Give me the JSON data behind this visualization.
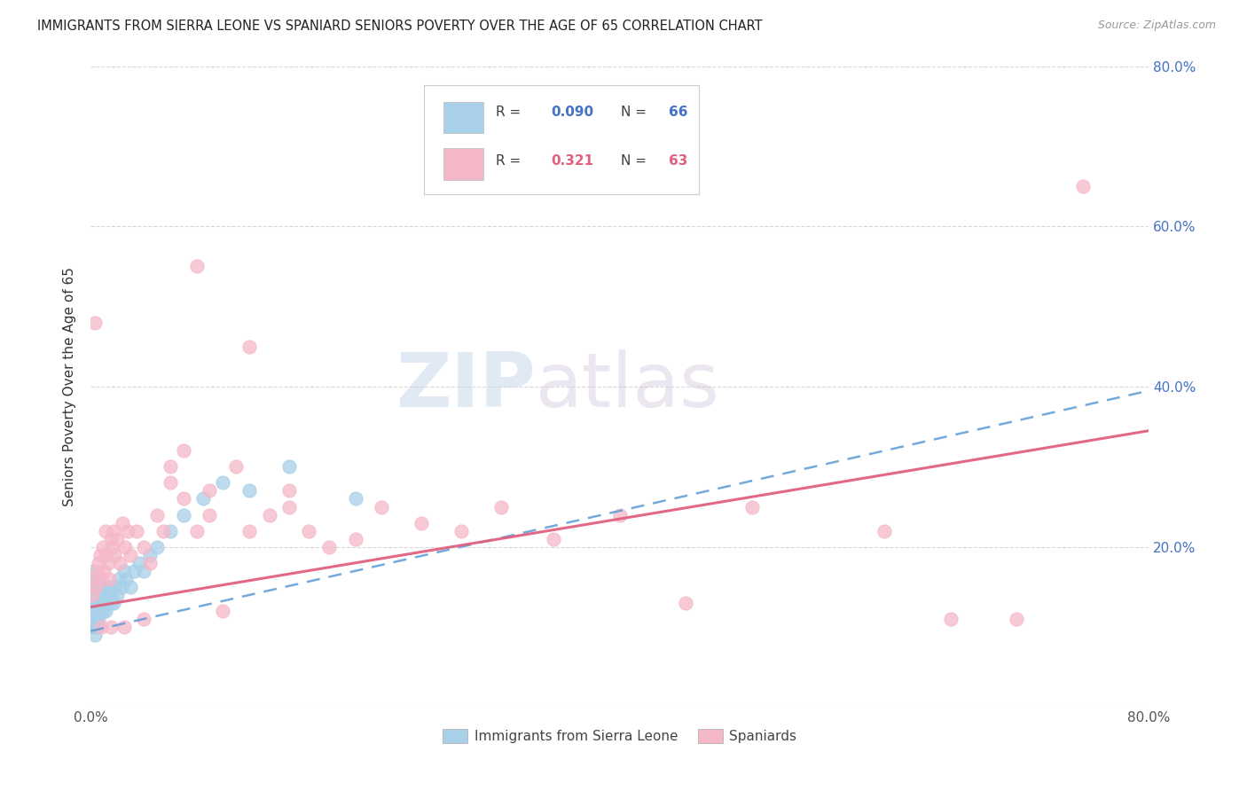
{
  "title": "IMMIGRANTS FROM SIERRA LEONE VS SPANIARD SENIORS POVERTY OVER THE AGE OF 65 CORRELATION CHART",
  "source": "Source: ZipAtlas.com",
  "ylabel": "Seniors Poverty Over the Age of 65",
  "legend_label1": "Immigrants from Sierra Leone",
  "legend_label2": "Spaniards",
  "r1": "0.090",
  "n1": "66",
  "r2": "0.321",
  "n2": "63",
  "color1": "#a8d0e8",
  "color2": "#f5b8c8",
  "line_color1": "#5b9bd5",
  "line_color2": "#e06080",
  "text_color_blue": "#4472c4",
  "text_color_dark": "#404040",
  "xlim": [
    0,
    0.8
  ],
  "ylim": [
    0,
    0.8
  ],
  "background_color": "#ffffff",
  "grid_color": "#d8d8d8",
  "watermark_zip": "ZIP",
  "watermark_atlas": "atlas",
  "sl_x": [
    0.001,
    0.001,
    0.001,
    0.001,
    0.001,
    0.002,
    0.002,
    0.002,
    0.002,
    0.002,
    0.002,
    0.002,
    0.002,
    0.003,
    0.003,
    0.003,
    0.003,
    0.003,
    0.003,
    0.003,
    0.004,
    0.004,
    0.004,
    0.004,
    0.005,
    0.005,
    0.005,
    0.005,
    0.006,
    0.006,
    0.006,
    0.007,
    0.007,
    0.008,
    0.008,
    0.009,
    0.009,
    0.01,
    0.01,
    0.011,
    0.011,
    0.012,
    0.013,
    0.014,
    0.015,
    0.016,
    0.017,
    0.018,
    0.02,
    0.021,
    0.023,
    0.025,
    0.027,
    0.03,
    0.033,
    0.037,
    0.04,
    0.045,
    0.05,
    0.06,
    0.07,
    0.085,
    0.1,
    0.12,
    0.15,
    0.2
  ],
  "sl_y": [
    0.12,
    0.14,
    0.11,
    0.15,
    0.1,
    0.13,
    0.15,
    0.11,
    0.16,
    0.14,
    0.12,
    0.1,
    0.17,
    0.14,
    0.12,
    0.16,
    0.11,
    0.13,
    0.15,
    0.09,
    0.13,
    0.15,
    0.11,
    0.14,
    0.12,
    0.16,
    0.1,
    0.14,
    0.13,
    0.15,
    0.11,
    0.14,
    0.12,
    0.13,
    0.15,
    0.12,
    0.14,
    0.13,
    0.15,
    0.14,
    0.12,
    0.13,
    0.14,
    0.15,
    0.13,
    0.14,
    0.13,
    0.15,
    0.14,
    0.16,
    0.15,
    0.17,
    0.16,
    0.15,
    0.17,
    0.18,
    0.17,
    0.19,
    0.2,
    0.22,
    0.24,
    0.26,
    0.28,
    0.27,
    0.3,
    0.26
  ],
  "sp_x": [
    0.001,
    0.002,
    0.003,
    0.004,
    0.005,
    0.006,
    0.007,
    0.008,
    0.009,
    0.01,
    0.011,
    0.012,
    0.013,
    0.014,
    0.015,
    0.016,
    0.017,
    0.018,
    0.02,
    0.022,
    0.024,
    0.026,
    0.028,
    0.03,
    0.035,
    0.04,
    0.045,
    0.05,
    0.055,
    0.06,
    0.07,
    0.08,
    0.09,
    0.1,
    0.11,
    0.12,
    0.135,
    0.15,
    0.165,
    0.18,
    0.2,
    0.22,
    0.25,
    0.28,
    0.31,
    0.35,
    0.4,
    0.45,
    0.5,
    0.6,
    0.65,
    0.7,
    0.75,
    0.08,
    0.12,
    0.15,
    0.07,
    0.09,
    0.06,
    0.04,
    0.025,
    0.015,
    0.008
  ],
  "sp_y": [
    0.14,
    0.16,
    0.48,
    0.15,
    0.17,
    0.18,
    0.19,
    0.16,
    0.2,
    0.17,
    0.22,
    0.19,
    0.18,
    0.16,
    0.21,
    0.2,
    0.22,
    0.19,
    0.21,
    0.18,
    0.23,
    0.2,
    0.22,
    0.19,
    0.22,
    0.2,
    0.18,
    0.24,
    0.22,
    0.3,
    0.26,
    0.22,
    0.27,
    0.12,
    0.3,
    0.22,
    0.24,
    0.27,
    0.22,
    0.2,
    0.21,
    0.25,
    0.23,
    0.22,
    0.25,
    0.21,
    0.24,
    0.13,
    0.25,
    0.22,
    0.11,
    0.11,
    0.65,
    0.55,
    0.45,
    0.25,
    0.32,
    0.24,
    0.28,
    0.11,
    0.1,
    0.1,
    0.1
  ]
}
